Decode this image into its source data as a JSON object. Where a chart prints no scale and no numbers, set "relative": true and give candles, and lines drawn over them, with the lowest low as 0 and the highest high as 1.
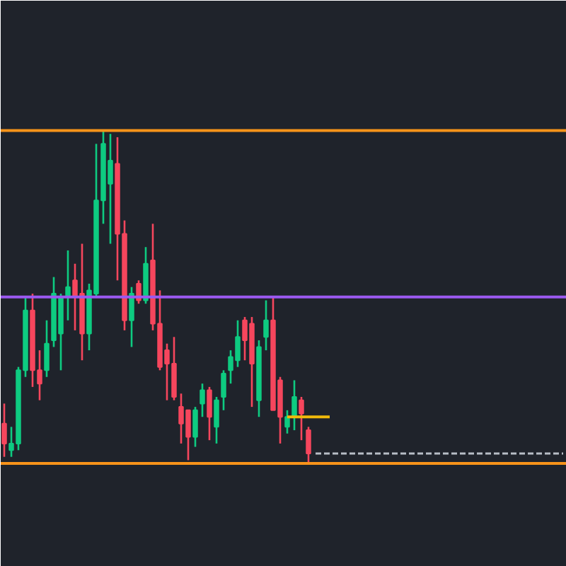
{
  "chart_data": {
    "type": "candlestick",
    "relative": true,
    "tick_labels": false,
    "grid": false,
    "categories": [
      null,
      null,
      null,
      null,
      null,
      null,
      null,
      null,
      null,
      null,
      null,
      null,
      null,
      null,
      null,
      null,
      null,
      null,
      null,
      null,
      null,
      null,
      null,
      null,
      null,
      null,
      null,
      null,
      null,
      null,
      null,
      null,
      null,
      null,
      null,
      null,
      null,
      null,
      null,
      null,
      null,
      null,
      null,
      null,
      null,
      null,
      null,
      null,
      null,
      null,
      null,
      null,
      null,
      null,
      null,
      null,
      null,
      null,
      null,
      null,
      null,
      null,
      null,
      null,
      null,
      null,
      null,
      null,
      null,
      null,
      null,
      null,
      null,
      null,
      null,
      null,
      null,
      null,
      null,
      null
    ],
    "ohlc": [
      [
        0.12,
        0.18,
        0.02,
        0.06
      ],
      [
        0.04,
        0.11,
        0.02,
        0.06
      ],
      [
        0.06,
        0.29,
        0.04,
        0.28
      ],
      [
        0.28,
        0.5,
        0.26,
        0.46
      ],
      [
        0.46,
        0.51,
        0.23,
        0.28
      ],
      [
        0.28,
        0.34,
        0.19,
        0.24
      ],
      [
        0.28,
        0.43,
        0.26,
        0.36
      ],
      [
        0.37,
        0.56,
        0.35,
        0.51
      ],
      [
        0.39,
        0.51,
        0.28,
        0.5
      ],
      [
        0.5,
        0.64,
        0.43,
        0.53
      ],
      [
        0.55,
        0.6,
        0.4,
        0.5
      ],
      [
        0.51,
        0.66,
        0.31,
        0.39
      ],
      [
        0.39,
        0.54,
        0.34,
        0.52
      ],
      [
        0.51,
        0.96,
        0.5,
        0.79
      ],
      [
        0.79,
        1.0,
        0.72,
        0.96
      ],
      [
        0.84,
        0.99,
        0.66,
        0.91
      ],
      [
        0.9,
        0.98,
        0.55,
        0.69
      ],
      [
        0.69,
        0.73,
        0.4,
        0.43
      ],
      [
        0.43,
        0.53,
        0.35,
        0.51
      ],
      [
        0.54,
        0.55,
        0.48,
        0.49
      ],
      [
        0.49,
        0.65,
        0.48,
        0.6
      ],
      [
        0.61,
        0.72,
        0.4,
        0.42
      ],
      [
        0.42,
        0.52,
        0.28,
        0.29
      ],
      [
        0.34,
        0.36,
        0.19,
        0.3
      ],
      [
        0.3,
        0.38,
        0.19,
        0.2
      ],
      [
        0.17,
        0.21,
        0.06,
        0.12
      ],
      [
        0.16,
        0.16,
        0.01,
        0.08
      ],
      [
        0.08,
        0.17,
        0.05,
        0.16
      ],
      [
        0.18,
        0.24,
        0.14,
        0.22
      ],
      [
        0.22,
        0.23,
        0.07,
        0.14
      ],
      [
        0.11,
        0.2,
        0.06,
        0.19
      ],
      [
        0.2,
        0.28,
        0.16,
        0.27
      ],
      [
        0.28,
        0.34,
        0.24,
        0.32
      ],
      [
        0.31,
        0.43,
        0.29,
        0.38
      ],
      [
        0.43,
        0.44,
        0.31,
        0.37
      ],
      [
        0.42,
        0.44,
        0.17,
        0.3
      ],
      [
        0.19,
        0.37,
        0.14,
        0.35
      ],
      [
        0.38,
        0.49,
        0.34,
        0.43
      ],
      [
        0.43,
        0.5,
        0.16,
        0.16
      ],
      [
        0.25,
        0.26,
        0.06,
        0.14
      ],
      [
        0.11,
        0.16,
        0.09,
        0.14
      ],
      [
        0.14,
        0.25,
        0.1,
        0.2
      ],
      [
        0.19,
        0.2,
        0.07,
        0.15
      ],
      [
        0.1,
        0.11,
        0.0,
        0.03
      ],
      null,
      null,
      null,
      null,
      null,
      null,
      null,
      null,
      null,
      null,
      null,
      null,
      null,
      null,
      null,
      null,
      null,
      null,
      null,
      null,
      null,
      null,
      null,
      null,
      null,
      null,
      null,
      null,
      null,
      null,
      null,
      null,
      null,
      null,
      null,
      null
    ],
    "colors": [
      "#f6465d",
      "#0ecb81",
      "#0ecb81",
      "#0ecb81",
      "#f6465d",
      "#f6465d",
      "#0ecb81",
      "#0ecb81",
      "#0ecb81",
      "#0ecb81",
      "#f6465d",
      "#f6465d",
      "#0ecb81",
      "#0ecb81",
      "#0ecb81",
      "#0ecb81",
      "#f6465d",
      "#f6465d",
      "#0ecb81",
      "#f6465d",
      "#0ecb81",
      "#f6465d",
      "#f6465d",
      "#f6465d",
      "#f6465d",
      "#f6465d",
      "#f6465d",
      "#0ecb81",
      "#0ecb81",
      "#f6465d",
      "#0ecb81",
      "#0ecb81",
      "#0ecb81",
      "#0ecb81",
      "#f6465d",
      "#f6465d",
      "#0ecb81",
      "#0ecb81",
      "#f6465d",
      "#f6465d",
      "#0ecb81",
      "#0ecb81",
      "#f6465d",
      "#f6465d",
      null,
      null,
      null,
      null,
      null,
      null,
      null,
      null,
      null,
      null,
      null,
      null,
      null,
      null,
      null,
      null,
      null,
      null,
      null,
      null,
      null,
      null,
      null,
      null,
      null,
      null,
      null,
      null,
      null,
      null,
      null,
      null,
      null,
      null,
      null,
      null
    ],
    "series": [
      {
        "type": "line",
        "color": "#f0b90b",
        "line_style": "solid",
        "values": [
          null,
          null,
          null,
          null,
          null,
          null,
          null,
          null,
          null,
          null,
          null,
          null,
          null,
          null,
          null,
          null,
          null,
          null,
          null,
          null,
          null,
          null,
          null,
          null,
          null,
          null,
          null,
          null,
          null,
          null,
          null,
          null,
          null,
          null,
          null,
          null,
          null,
          null,
          null,
          null,
          0.14,
          0.14,
          0.14,
          0.14,
          0.14,
          0.14,
          0.14,
          null,
          null,
          null,
          null,
          null,
          null,
          null,
          null,
          null,
          null,
          null,
          null,
          null,
          null,
          null,
          null,
          null,
          null,
          null,
          null,
          null,
          null,
          null,
          null,
          null,
          null,
          null,
          null,
          null,
          null,
          null,
          null,
          null
        ]
      },
      {
        "type": "line",
        "color": "#b7bdc6",
        "line_style": "dashed",
        "values": [
          null,
          null,
          null,
          null,
          null,
          null,
          null,
          null,
          null,
          null,
          null,
          null,
          null,
          null,
          null,
          null,
          null,
          null,
          null,
          null,
          null,
          null,
          null,
          null,
          null,
          null,
          null,
          null,
          null,
          null,
          null,
          null,
          null,
          null,
          null,
          null,
          null,
          null,
          null,
          null,
          null,
          null,
          null,
          null,
          0.03,
          0.03,
          0.03,
          0.03,
          0.03,
          0.03,
          0.03,
          0.03,
          0.03,
          0.03,
          0.03,
          0.03,
          0.03,
          0.03,
          0.03,
          0.03,
          0.03,
          0.03,
          0.03,
          0.03,
          0.03,
          0.03,
          0.03,
          0.03,
          0.03,
          0.03,
          0.03,
          0.03,
          0.03,
          0.03,
          0.03,
          0.03,
          0.03,
          0.03,
          0.03,
          0.03
        ]
      }
    ],
    "ref_lines": [
      {
        "axis": "y",
        "value": 1,
        "color": "#f7931a"
      },
      {
        "axis": "y",
        "value": 0,
        "color": "#f7931a"
      },
      {
        "axis": "y",
        "value": 0.5,
        "color": "#9b59f0"
      }
    ]
  }
}
